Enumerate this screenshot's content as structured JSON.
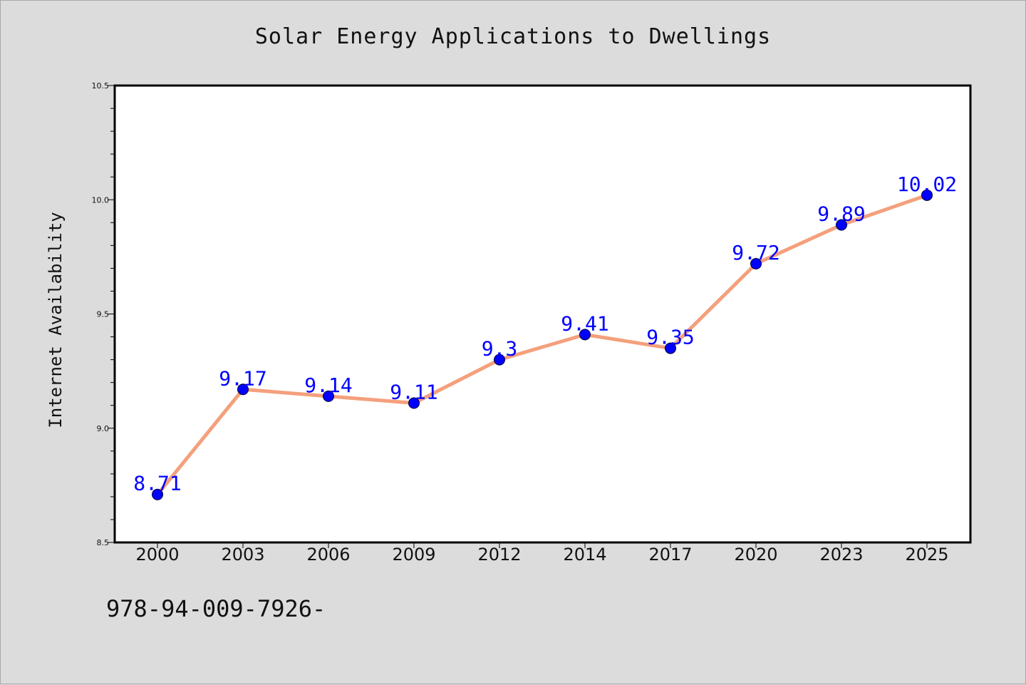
{
  "chart_data": {
    "type": "line",
    "title": "Solar Energy Applications to Dwellings",
    "xlabel": "",
    "ylabel": "Internet Availability",
    "categories": [
      "2000",
      "2003",
      "2006",
      "2009",
      "2012",
      "2014",
      "2017",
      "2020",
      "2023",
      "2025"
    ],
    "series": [
      {
        "values": [
          8.71,
          9.17,
          9.14,
          9.11,
          9.3,
          9.41,
          9.35,
          9.72,
          9.89,
          10.02
        ],
        "data_labels": [
          "8.71",
          "9.17",
          "9.14",
          "9.11",
          "9.3",
          "9.41",
          "9.35",
          "9.72",
          "9.89",
          "10.02"
        ],
        "line_color": "#f4a07c",
        "marker_color": "#0000ff"
      }
    ],
    "ylim": [
      8.5,
      10.5
    ],
    "yticks": [
      "8.5",
      "9.0",
      "9.5",
      "10.0",
      "10.5"
    ],
    "grid": false,
    "legend": "none",
    "data_label_color": "#0000ff"
  },
  "footer": {
    "code": "978-94-009-7926-"
  },
  "colors": {
    "background": "#dcdcdc",
    "plot_background": "#ffffff"
  }
}
